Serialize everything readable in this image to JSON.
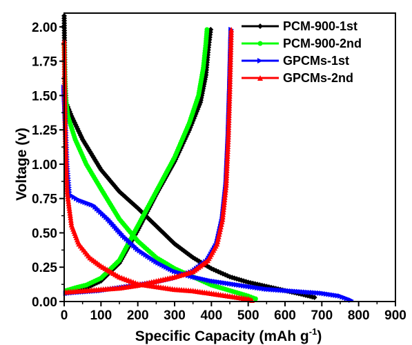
{
  "chart_data": {
    "type": "line",
    "xlabel": "Specific Capacity (mAh g",
    "xlabel_sup": "-1",
    "xlabel_end": ")",
    "ylabel": "Voltage (v)",
    "xlim": [
      0,
      900
    ],
    "ylim": [
      0,
      2.1
    ],
    "x_ticks": [
      0,
      100,
      200,
      300,
      400,
      500,
      600,
      700,
      800,
      900
    ],
    "y_ticks": [
      0.0,
      0.25,
      0.5,
      0.75,
      1.0,
      1.25,
      1.5,
      1.75,
      2.0
    ],
    "x_tick_labels": [
      "0",
      "100",
      "200",
      "300",
      "400",
      "500",
      "600",
      "700",
      "800",
      "900"
    ],
    "y_tick_labels": [
      "0.00",
      "0.25",
      "0.50",
      "0.75",
      "1.00",
      "1.25",
      "1.50",
      "1.75",
      "2.00"
    ],
    "grid": false,
    "legend_position": "top-right",
    "series": [
      {
        "name": "PCM-900-1st",
        "color": "#000000",
        "marker": "diamond",
        "discharge": [
          [
            0,
            2.08
          ],
          [
            2,
            1.6
          ],
          [
            5,
            1.45
          ],
          [
            20,
            1.35
          ],
          [
            50,
            1.18
          ],
          [
            100,
            0.96
          ],
          [
            150,
            0.8
          ],
          [
            200,
            0.68
          ],
          [
            250,
            0.55
          ],
          [
            300,
            0.42
          ],
          [
            350,
            0.32
          ],
          [
            400,
            0.24
          ],
          [
            450,
            0.18
          ],
          [
            500,
            0.14
          ],
          [
            550,
            0.11
          ],
          [
            600,
            0.08
          ],
          [
            650,
            0.05
          ],
          [
            680,
            0.03
          ]
        ],
        "charge": [
          [
            5,
            0.06
          ],
          [
            30,
            0.08
          ],
          [
            60,
            0.1
          ],
          [
            100,
            0.15
          ],
          [
            150,
            0.28
          ],
          [
            200,
            0.52
          ],
          [
            250,
            0.78
          ],
          [
            300,
            1.02
          ],
          [
            340,
            1.25
          ],
          [
            370,
            1.45
          ],
          [
            385,
            1.65
          ],
          [
            392,
            1.85
          ],
          [
            398,
            1.98
          ]
        ]
      },
      {
        "name": "PCM-900-2nd",
        "color": "#00ff00",
        "marker": "circle",
        "discharge": [
          [
            0,
            1.88
          ],
          [
            3,
            1.5
          ],
          [
            10,
            1.35
          ],
          [
            30,
            1.18
          ],
          [
            60,
            1.0
          ],
          [
            100,
            0.82
          ],
          [
            150,
            0.6
          ],
          [
            200,
            0.44
          ],
          [
            250,
            0.32
          ],
          [
            300,
            0.24
          ],
          [
            350,
            0.18
          ],
          [
            400,
            0.12
          ],
          [
            450,
            0.08
          ],
          [
            500,
            0.04
          ],
          [
            520,
            0.02
          ]
        ],
        "charge": [
          [
            5,
            0.08
          ],
          [
            30,
            0.1
          ],
          [
            60,
            0.12
          ],
          [
            100,
            0.17
          ],
          [
            150,
            0.3
          ],
          [
            200,
            0.55
          ],
          [
            250,
            0.8
          ],
          [
            300,
            1.05
          ],
          [
            340,
            1.3
          ],
          [
            365,
            1.5
          ],
          [
            378,
            1.7
          ],
          [
            385,
            1.88
          ],
          [
            388,
            1.98
          ]
        ]
      },
      {
        "name": "GPCMs-1st",
        "color": "#0000ff",
        "marker": "triangle-right",
        "discharge": [
          [
            0,
            1.56
          ],
          [
            3,
            1.35
          ],
          [
            8,
            1.0
          ],
          [
            15,
            0.78
          ],
          [
            40,
            0.74
          ],
          [
            80,
            0.7
          ],
          [
            120,
            0.6
          ],
          [
            160,
            0.48
          ],
          [
            200,
            0.38
          ],
          [
            250,
            0.29
          ],
          [
            300,
            0.22
          ],
          [
            350,
            0.18
          ],
          [
            400,
            0.15
          ],
          [
            450,
            0.13
          ],
          [
            500,
            0.11
          ],
          [
            550,
            0.09
          ],
          [
            600,
            0.08
          ],
          [
            650,
            0.07
          ],
          [
            700,
            0.06
          ],
          [
            750,
            0.04
          ],
          [
            780,
            0.01
          ]
        ],
        "charge": [
          [
            5,
            0.06
          ],
          [
            50,
            0.07
          ],
          [
            100,
            0.08
          ],
          [
            150,
            0.1
          ],
          [
            200,
            0.12
          ],
          [
            250,
            0.14
          ],
          [
            300,
            0.17
          ],
          [
            350,
            0.22
          ],
          [
            390,
            0.3
          ],
          [
            415,
            0.42
          ],
          [
            430,
            0.6
          ],
          [
            440,
            0.85
          ],
          [
            446,
            1.2
          ],
          [
            450,
            1.55
          ],
          [
            454,
            1.98
          ]
        ]
      },
      {
        "name": "GPCMs-2nd",
        "color": "#ff0000",
        "marker": "triangle-up",
        "discharge": [
          [
            0,
            1.9
          ],
          [
            3,
            1.2
          ],
          [
            8,
            0.8
          ],
          [
            20,
            0.56
          ],
          [
            40,
            0.42
          ],
          [
            70,
            0.32
          ],
          [
            100,
            0.26
          ],
          [
            150,
            0.18
          ],
          [
            200,
            0.13
          ],
          [
            250,
            0.11
          ],
          [
            300,
            0.09
          ],
          [
            350,
            0.08
          ],
          [
            400,
            0.06
          ],
          [
            450,
            0.04
          ],
          [
            500,
            0.02
          ],
          [
            510,
            0.01
          ]
        ],
        "charge": [
          [
            5,
            0.07
          ],
          [
            50,
            0.08
          ],
          [
            100,
            0.09
          ],
          [
            150,
            0.1
          ],
          [
            200,
            0.12
          ],
          [
            250,
            0.15
          ],
          [
            300,
            0.18
          ],
          [
            350,
            0.22
          ],
          [
            390,
            0.3
          ],
          [
            415,
            0.42
          ],
          [
            430,
            0.6
          ],
          [
            440,
            0.85
          ],
          [
            446,
            1.2
          ],
          [
            450,
            1.55
          ],
          [
            454,
            1.98
          ]
        ]
      }
    ]
  }
}
